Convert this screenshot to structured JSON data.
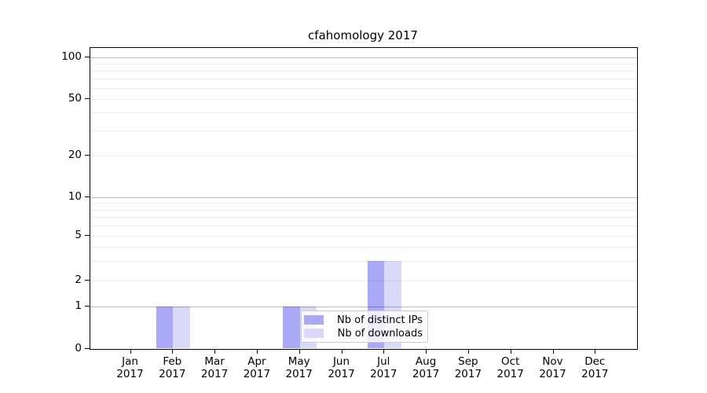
{
  "chart_data": {
    "type": "bar",
    "title": "cfahomology 2017",
    "categories": [
      "Jan 2017",
      "Feb 2017",
      "Mar 2017",
      "Apr 2017",
      "May 2017",
      "Jun 2017",
      "Jul 2017",
      "Aug 2017",
      "Sep 2017",
      "Oct 2017",
      "Nov 2017",
      "Dec 2017"
    ],
    "series": [
      {
        "name": "Nb of distinct IPs",
        "color": "#a9a9f6",
        "values": [
          0,
          1,
          0,
          0,
          1,
          0,
          3,
          0,
          0,
          0,
          0,
          0
        ]
      },
      {
        "name": "Nb of downloads",
        "color": "#d9d9f9",
        "values": [
          0,
          1,
          0,
          0,
          1,
          0,
          3,
          0,
          0,
          0,
          0,
          0
        ]
      }
    ],
    "xlabel": "",
    "ylabel": "",
    "y_scale": "symlog",
    "ylim": [
      0,
      120
    ],
    "y_labeled_ticks": [
      0,
      1,
      2,
      5,
      10,
      20,
      50,
      100
    ],
    "y_major_ticks": [
      1,
      10,
      100
    ],
    "y_minor_gridlines": [
      3,
      4,
      6,
      7,
      8,
      9,
      30,
      40,
      60,
      70,
      80,
      90
    ],
    "grid": "on",
    "legend_position": "lower center inside"
  }
}
